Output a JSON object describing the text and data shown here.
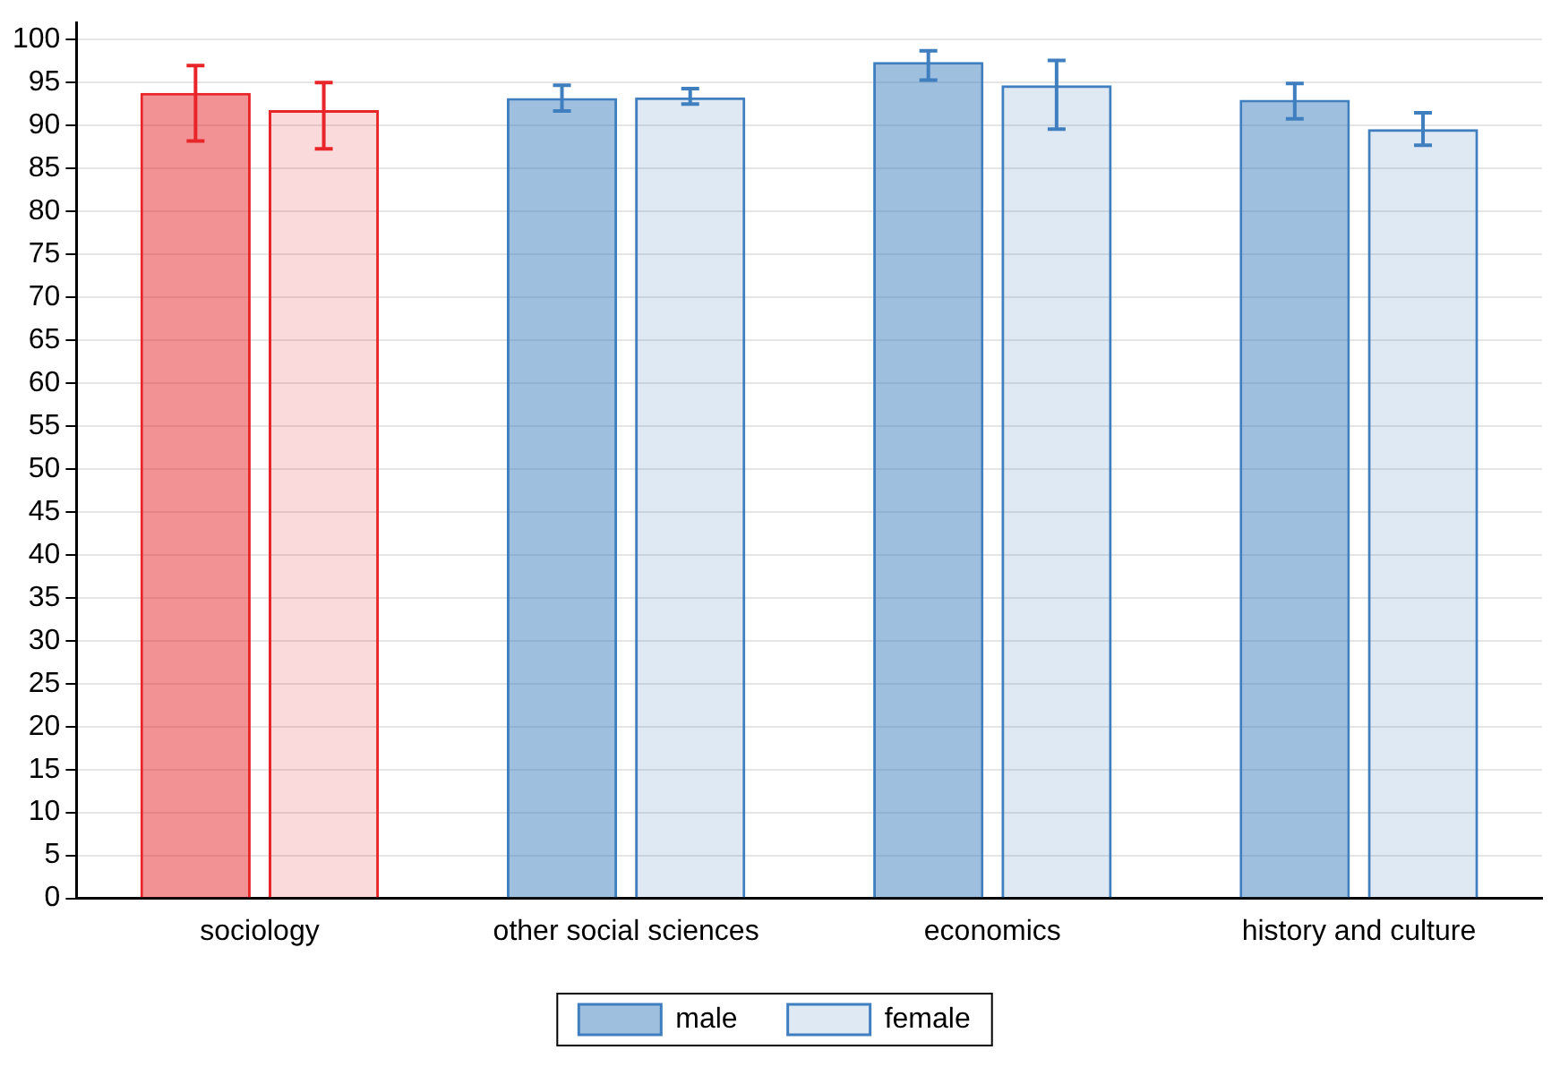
{
  "chart_data": {
    "type": "bar",
    "categories": [
      "sociology",
      "other social sciences",
      "economics",
      "history and culture"
    ],
    "series": [
      {
        "name": "male",
        "color": "#3f7fbf",
        "colors": [
          "#e8262a",
          "#3f7fbf",
          "#3f7fbf",
          "#3f7fbf"
        ],
        "values": [
          93.8,
          93.2,
          97.4,
          93.0
        ],
        "errors": [
          [
            88.2,
            97.0
          ],
          [
            91.7,
            94.7
          ],
          [
            95.3,
            98.7
          ],
          [
            90.8,
            94.9
          ]
        ]
      },
      {
        "name": "female",
        "color": "#3f7fbf",
        "colors": [
          "#e8262a",
          "#3f7fbf",
          "#3f7fbf",
          "#3f7fbf"
        ],
        "values": [
          91.8,
          93.3,
          94.7,
          89.6
        ],
        "errors": [
          [
            87.3,
            95.0
          ],
          [
            92.5,
            94.3
          ],
          [
            89.6,
            97.6
          ],
          [
            87.7,
            91.5
          ]
        ]
      }
    ],
    "ylim": [
      0,
      102
    ],
    "yticks": [
      0,
      5,
      10,
      15,
      20,
      25,
      30,
      35,
      40,
      45,
      50,
      55,
      60,
      65,
      70,
      75,
      80,
      85,
      90,
      95,
      100
    ],
    "grid": "y",
    "legend": "bottom"
  }
}
